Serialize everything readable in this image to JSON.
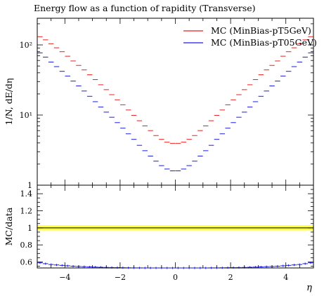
{
  "chart_data": {
    "type": "line",
    "title": "Energy flow as a function of rapidity (Transverse)",
    "xlabel": "η",
    "ylabel": "1/N, dE/dη",
    "ratio_ylabel": "MC/data",
    "log_y": true,
    "xlim": [
      -5,
      5
    ],
    "ylim": [
      1,
      240
    ],
    "ratio_ylim": [
      0.53,
      1.5
    ],
    "x_ticks": [
      -4,
      -2,
      0,
      2,
      4
    ],
    "y_ticks": [
      1,
      10,
      100
    ],
    "y_tick_labels": [
      "1",
      "10¹",
      "10²"
    ],
    "ratio_ticks": [
      0.6,
      0.8,
      1,
      1.2,
      1.4
    ],
    "x": [
      -4.9,
      -4.7,
      -4.5,
      -4.3,
      -4.1,
      -3.9,
      -3.7,
      -3.5,
      -3.3,
      -3.1,
      -2.9,
      -2.7,
      -2.5,
      -2.3,
      -2.1,
      -1.9,
      -1.7,
      -1.5,
      -1.3,
      -1.1,
      -0.9,
      -0.7,
      -0.5,
      -0.3,
      -0.1,
      0.1,
      0.3,
      0.5,
      0.7,
      0.9,
      1.1,
      1.3,
      1.5,
      1.7,
      1.9,
      2.1,
      2.3,
      2.5,
      2.7,
      2.9,
      3.1,
      3.3,
      3.5,
      3.7,
      3.9,
      4.1,
      4.3,
      4.5,
      4.7,
      4.9
    ],
    "series": [
      {
        "name": "MC (MinBias-pT5GeV)",
        "color": "#e8201c",
        "values": [
          131,
          118,
          104,
          91,
          80,
          69,
          59,
          51,
          44,
          37.5,
          32,
          27,
          23,
          19.5,
          16.5,
          14,
          11.8,
          9.9,
          8.3,
          7,
          6,
          5.1,
          4.5,
          4.1,
          3.95,
          3.95,
          4.1,
          4.5,
          5.1,
          6,
          7,
          8.3,
          9.9,
          11.8,
          14,
          16.5,
          19.5,
          23,
          27,
          32,
          37.5,
          44,
          51,
          59,
          69,
          80,
          91,
          104,
          118,
          131
        ]
      },
      {
        "name": "MC (MinBias-pT05GeV)",
        "color": "#1a1ae0",
        "values": [
          77,
          67,
          57,
          49,
          42,
          36,
          30.5,
          26,
          22,
          18.5,
          15.5,
          13,
          11,
          9.3,
          7.8,
          6.5,
          5.4,
          4.5,
          3.7,
          3.1,
          2.6,
          2.2,
          1.9,
          1.7,
          1.6,
          1.6,
          1.7,
          1.9,
          2.2,
          2.6,
          3.1,
          3.7,
          4.5,
          5.4,
          6.5,
          7.8,
          9.3,
          11,
          13,
          15.5,
          18.5,
          22,
          26,
          30.5,
          36,
          42,
          49,
          57,
          67,
          77
        ]
      }
    ],
    "ratio_band": {
      "center": 1.0,
      "low": 0.98,
      "high": 1.02,
      "color": "#ffff3c"
    },
    "ratio_series": {
      "name": "MC (MinBias-pT05GeV)",
      "color": "#1a1ae0",
      "values": [
        0.59,
        0.58,
        0.57,
        0.565,
        0.56,
        0.555,
        0.55,
        0.547,
        0.545,
        0.542,
        0.54,
        0.538,
        0.536,
        0.535,
        0.534,
        0.533,
        0.532,
        0.531,
        0.531,
        0.53,
        0.53,
        0.53,
        0.53,
        0.53,
        0.53,
        0.53,
        0.53,
        0.53,
        0.53,
        0.53,
        0.53,
        0.531,
        0.531,
        0.532,
        0.533,
        0.534,
        0.535,
        0.536,
        0.538,
        0.54,
        0.542,
        0.545,
        0.547,
        0.55,
        0.555,
        0.56,
        0.565,
        0.57,
        0.58,
        0.59
      ]
    },
    "legend_placement": "top-right"
  }
}
